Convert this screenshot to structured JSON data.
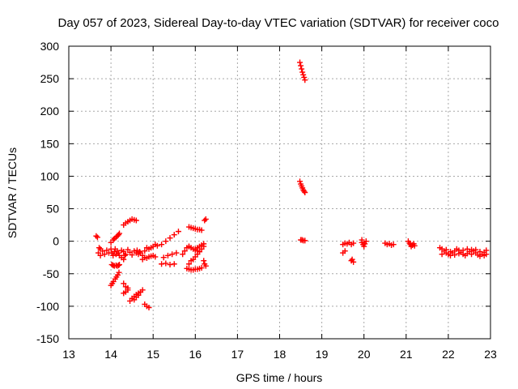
{
  "chart_data": {
    "type": "scatter",
    "title": "Day 057 of 2023, Sidereal Day-to-day VTEC variation (SDTVAR) for receiver coco",
    "xlabel": "GPS time / hours",
    "ylabel": "SDTVAR / TECUs",
    "xlim": [
      13,
      23
    ],
    "ylim": [
      -150,
      300
    ],
    "x_ticks": [
      "13",
      "14",
      "15",
      "16",
      "17",
      "18",
      "19",
      "20",
      "21",
      "22",
      "23"
    ],
    "y_ticks": [
      "-150",
      "-100",
      "-50",
      "0",
      "50",
      "100",
      "150",
      "200",
      "250",
      "300"
    ],
    "grid": true,
    "marker": "plus",
    "color": "#ff0000",
    "series": [
      {
        "name": "SDTVAR",
        "points": [
          [
            13.65,
            8
          ],
          [
            13.68,
            6
          ],
          [
            13.72,
            -10
          ],
          [
            13.75,
            -12
          ],
          [
            13.7,
            -18
          ],
          [
            13.75,
            -22
          ],
          [
            13.8,
            -15
          ],
          [
            13.85,
            -20
          ],
          [
            13.9,
            -14
          ],
          [
            13.95,
            -18
          ],
          [
            14.0,
            -12
          ],
          [
            14.02,
            -18
          ],
          [
            14.05,
            -22
          ],
          [
            14.08,
            -16
          ],
          [
            14.1,
            -12
          ],
          [
            14.12,
            -20
          ],
          [
            14.15,
            -15
          ],
          [
            14.18,
            -18
          ],
          [
            14.2,
            -22
          ],
          [
            14.25,
            -14
          ],
          [
            14.3,
            -16
          ],
          [
            14.35,
            -20
          ],
          [
            14.4,
            -13
          ],
          [
            14.45,
            -17
          ],
          [
            14.5,
            -21
          ],
          [
            14.55,
            -15
          ],
          [
            14.6,
            -18
          ],
          [
            14.62,
            -14
          ],
          [
            14.65,
            -20
          ],
          [
            14.68,
            -16
          ],
          [
            14.0,
            -2
          ],
          [
            14.05,
            2
          ],
          [
            14.08,
            4
          ],
          [
            14.12,
            6
          ],
          [
            14.15,
            8
          ],
          [
            14.18,
            10
          ],
          [
            14.2,
            12
          ],
          [
            14.02,
            -36
          ],
          [
            14.05,
            -37
          ],
          [
            14.08,
            -38
          ],
          [
            14.12,
            -37
          ],
          [
            14.15,
            -38
          ],
          [
            14.18,
            -37
          ],
          [
            14.2,
            -36
          ],
          [
            14.0,
            -68
          ],
          [
            14.03,
            -65
          ],
          [
            14.06,
            -62
          ],
          [
            14.1,
            -58
          ],
          [
            14.13,
            -55
          ],
          [
            14.16,
            -52
          ],
          [
            14.19,
            -48
          ],
          [
            14.25,
            -25
          ],
          [
            14.3,
            -28
          ],
          [
            14.33,
            -22
          ],
          [
            14.3,
            25
          ],
          [
            14.35,
            28
          ],
          [
            14.4,
            30
          ],
          [
            14.45,
            32
          ],
          [
            14.5,
            34
          ],
          [
            14.55,
            33
          ],
          [
            14.6,
            32
          ],
          [
            14.3,
            -65
          ],
          [
            14.35,
            -70
          ],
          [
            14.4,
            -75
          ],
          [
            14.3,
            -80
          ],
          [
            14.35,
            -78
          ],
          [
            14.4,
            -72
          ],
          [
            14.45,
            -92
          ],
          [
            14.5,
            -88
          ],
          [
            14.55,
            -85
          ],
          [
            14.6,
            -82
          ],
          [
            14.65,
            -80
          ],
          [
            14.7,
            -78
          ],
          [
            14.75,
            -75
          ],
          [
            14.55,
            -90
          ],
          [
            14.6,
            -86
          ],
          [
            14.65,
            -83
          ],
          [
            14.7,
            -18
          ],
          [
            14.75,
            -22
          ],
          [
            14.8,
            -15
          ],
          [
            14.85,
            -10
          ],
          [
            14.9,
            -12
          ],
          [
            14.75,
            -28
          ],
          [
            14.8,
            -25
          ],
          [
            14.85,
            -26
          ],
          [
            14.9,
            -24
          ],
          [
            14.95,
            -23
          ],
          [
            15.0,
            -22
          ],
          [
            15.05,
            -24
          ],
          [
            14.8,
            -97
          ],
          [
            14.85,
            -100
          ],
          [
            14.9,
            -102
          ],
          [
            14.95,
            -10
          ],
          [
            15.0,
            -8
          ],
          [
            15.05,
            -5
          ],
          [
            15.1,
            -7
          ],
          [
            15.2,
            -5
          ],
          [
            15.2,
            -35
          ],
          [
            15.3,
            -34
          ],
          [
            15.4,
            -36
          ],
          [
            15.5,
            -35
          ],
          [
            15.25,
            -25
          ],
          [
            15.35,
            -22
          ],
          [
            15.45,
            -20
          ],
          [
            15.55,
            -18
          ],
          [
            15.3,
            0
          ],
          [
            15.4,
            5
          ],
          [
            15.5,
            10
          ],
          [
            15.6,
            15
          ],
          [
            15.7,
            -20
          ],
          [
            15.75,
            -15
          ],
          [
            15.8,
            -10
          ],
          [
            15.85,
            -8
          ],
          [
            15.8,
            -42
          ],
          [
            15.85,
            -43
          ],
          [
            15.9,
            -44
          ],
          [
            15.95,
            -44
          ],
          [
            16.0,
            -43
          ],
          [
            16.05,
            -43
          ],
          [
            16.1,
            -42
          ],
          [
            16.15,
            -41
          ],
          [
            15.85,
            -35
          ],
          [
            15.9,
            -30
          ],
          [
            15.95,
            -28
          ],
          [
            16.0,
            -24
          ],
          [
            16.05,
            -20
          ],
          [
            16.1,
            -16
          ],
          [
            16.15,
            -12
          ],
          [
            16.2,
            -8
          ],
          [
            16.0,
            -12
          ],
          [
            16.05,
            -10
          ],
          [
            16.1,
            -8
          ],
          [
            16.15,
            -6
          ],
          [
            16.2,
            -4
          ],
          [
            15.85,
            -8
          ],
          [
            15.9,
            -10
          ],
          [
            15.95,
            -12
          ],
          [
            16.0,
            -14
          ],
          [
            16.05,
            -15
          ],
          [
            16.1,
            -16
          ],
          [
            15.85,
            22
          ],
          [
            15.9,
            21
          ],
          [
            15.95,
            20
          ],
          [
            16.0,
            19
          ],
          [
            16.05,
            18
          ],
          [
            16.1,
            18
          ],
          [
            16.15,
            17
          ],
          [
            16.2,
            -30
          ],
          [
            16.22,
            -35
          ],
          [
            16.25,
            -38
          ],
          [
            16.22,
            32
          ],
          [
            16.25,
            34
          ],
          [
            18.48,
            275
          ],
          [
            18.5,
            270
          ],
          [
            18.52,
            265
          ],
          [
            18.54,
            260
          ],
          [
            18.56,
            256
          ],
          [
            18.58,
            252
          ],
          [
            18.6,
            248
          ],
          [
            18.48,
            92
          ],
          [
            18.5,
            88
          ],
          [
            18.52,
            85
          ],
          [
            18.54,
            82
          ],
          [
            18.56,
            79
          ],
          [
            18.58,
            77
          ],
          [
            18.6,
            75
          ],
          [
            18.5,
            2
          ],
          [
            18.53,
            2
          ],
          [
            18.56,
            1
          ],
          [
            18.6,
            1
          ],
          [
            19.5,
            -5
          ],
          [
            19.55,
            -3
          ],
          [
            19.6,
            -4
          ],
          [
            19.65,
            -2
          ],
          [
            19.7,
            -5
          ],
          [
            19.75,
            -3
          ],
          [
            19.5,
            -18
          ],
          [
            19.55,
            -15
          ],
          [
            19.7,
            -30
          ],
          [
            19.75,
            -32
          ],
          [
            19.72,
            -28
          ],
          [
            19.95,
            -2
          ],
          [
            19.98,
            -5
          ],
          [
            20.0,
            -8
          ],
          [
            20.02,
            -4
          ],
          [
            20.05,
            0
          ],
          [
            19.95,
            2
          ],
          [
            20.5,
            -3
          ],
          [
            20.55,
            -5
          ],
          [
            20.6,
            -4
          ],
          [
            20.65,
            -6
          ],
          [
            20.7,
            -5
          ],
          [
            21.05,
            0
          ],
          [
            21.08,
            -3
          ],
          [
            21.1,
            -5
          ],
          [
            21.12,
            -8
          ],
          [
            21.15,
            -6
          ],
          [
            21.18,
            -4
          ],
          [
            21.2,
            -7
          ],
          [
            21.8,
            -10
          ],
          [
            21.85,
            -12
          ],
          [
            21.9,
            -15
          ],
          [
            21.95,
            -18
          ],
          [
            22.0,
            -20
          ],
          [
            22.05,
            -22
          ],
          [
            22.1,
            -18
          ],
          [
            22.15,
            -15
          ],
          [
            22.2,
            -12
          ],
          [
            22.25,
            -14
          ],
          [
            22.3,
            -17
          ],
          [
            22.35,
            -20
          ],
          [
            22.4,
            -22
          ],
          [
            22.45,
            -19
          ],
          [
            22.5,
            -16
          ],
          [
            22.55,
            -13
          ],
          [
            22.6,
            -15
          ],
          [
            22.65,
            -18
          ],
          [
            22.7,
            -21
          ],
          [
            22.75,
            -23
          ],
          [
            22.8,
            -20
          ],
          [
            22.85,
            -17
          ],
          [
            22.9,
            -14
          ],
          [
            21.85,
            -20
          ],
          [
            21.95,
            -13
          ],
          [
            22.05,
            -16
          ],
          [
            22.15,
            -21
          ],
          [
            22.25,
            -19
          ],
          [
            22.35,
            -14
          ],
          [
            22.45,
            -12
          ],
          [
            22.55,
            -20
          ],
          [
            22.65,
            -13
          ],
          [
            22.75,
            -16
          ],
          [
            22.85,
            -22
          ],
          [
            22.9,
            -20
          ]
        ]
      }
    ]
  }
}
